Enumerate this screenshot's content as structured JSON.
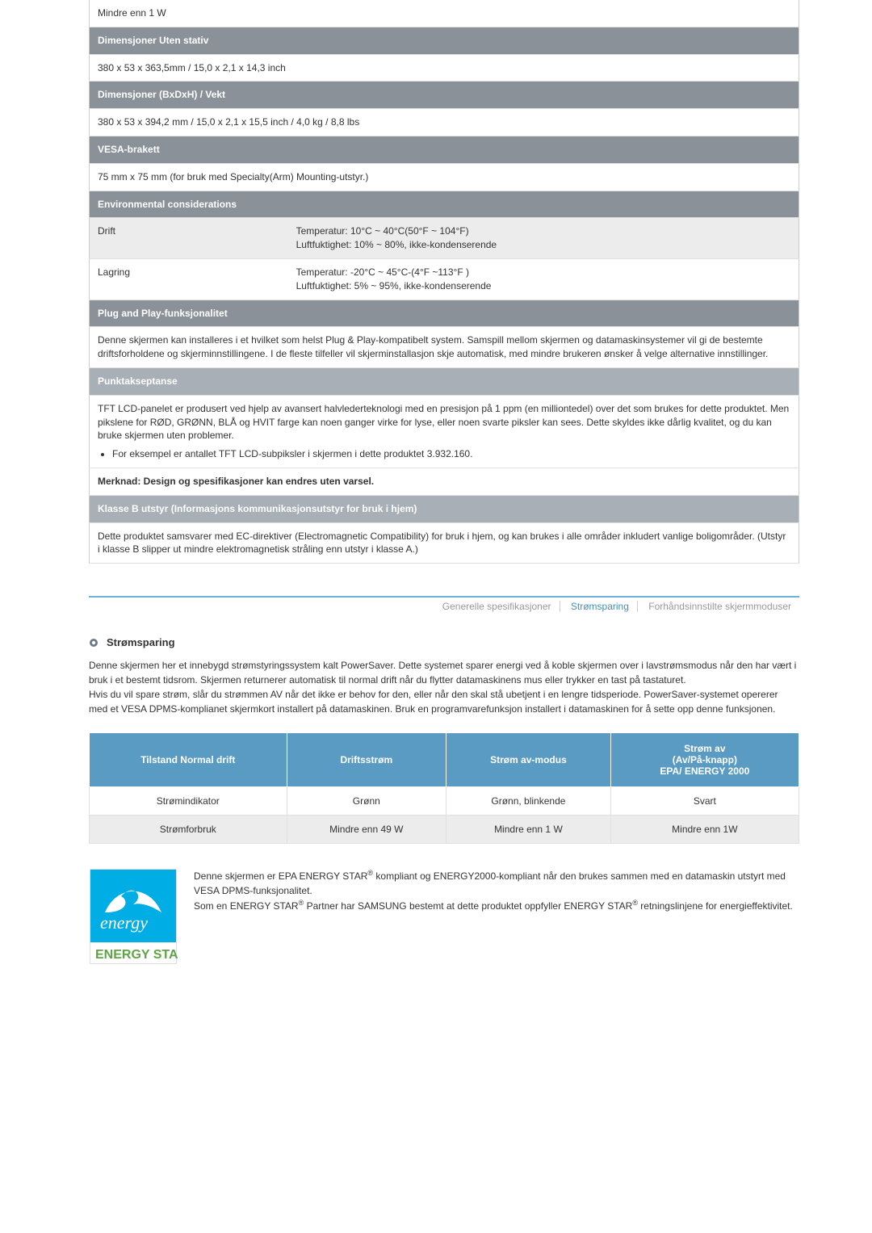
{
  "spec_rows": [
    {
      "type": "cell",
      "alt": false,
      "colspan": 2,
      "text": "Mindre enn 1 W"
    },
    {
      "type": "header",
      "text": "Dimensjoner Uten stativ"
    },
    {
      "type": "cell",
      "alt": false,
      "colspan": 2,
      "text": "380 x 53 x 363,5mm / 15,0 x 2,1 x 14,3 inch"
    },
    {
      "type": "header",
      "text": "Dimensjoner (BxDxH) / Vekt"
    },
    {
      "type": "cell",
      "alt": false,
      "colspan": 2,
      "text": "380 x 53 x 394,2 mm / 15,0 x 2,1 x 15,5 inch / 4,0 kg / 8,8 lbs"
    },
    {
      "type": "header",
      "text": "VESA-brakett"
    },
    {
      "type": "cell",
      "alt": false,
      "colspan": 2,
      "text": "75 mm x 75 mm (for bruk med Specialty(Arm) Mounting-utstyr.)"
    },
    {
      "type": "header",
      "text": "Environmental considerations"
    },
    {
      "type": "kv",
      "alt": true,
      "k": "Drift",
      "v": "Temperatur: 10°C ~ 40°C(50°F ~ 104°F)\nLuftfuktighet: 10% ~ 80%, ikke-kondenserende"
    },
    {
      "type": "kv",
      "alt": false,
      "k": "Lagring",
      "v": "Temperatur: -20°C ~ 45°C-(4°F ~113°F )\nLuftfuktighet: 5% ~ 95%, ikke-kondenserende"
    },
    {
      "type": "header",
      "text": "Plug and Play-funksjonalitet"
    },
    {
      "type": "cell",
      "alt": false,
      "colspan": 2,
      "text": "Denne skjermen kan installeres i et hvilket som helst Plug & Play-kompatibelt system. Samspill mellom skjermen og datamaskinsystemer vil gi de bestemte driftsforholdene og skjerminnstillingene. I de fleste tilfeller vil skjerminstallasjon skje automatisk, med mindre brukeren ønsker å velge alternative innstillinger."
    },
    {
      "type": "header-lt",
      "text": "Punktakseptanse"
    },
    {
      "type": "cell-list",
      "alt": false,
      "colspan": 2,
      "text": "TFT LCD-panelet er produsert ved hjelp av avansert halvlederteknologi med en presisjon på 1 ppm (en milliontedel) over det som brukes for dette produktet. Men pikslene for RØD, GRØNN, BLÅ og HVIT farge kan noen ganger virke for lyse, eller noen svarte piksler kan sees. Dette skyldes ikke dårlig kvalitet, og du kan bruke skjermen uten problemer.",
      "bullet": "For eksempel er antallet TFT LCD-subpiksler i skjermen i dette produktet 3.932.160."
    },
    {
      "type": "cell",
      "alt": false,
      "colspan": 2,
      "bold": true,
      "text": "Merknad: Design og spesifikasjoner kan endres uten varsel."
    },
    {
      "type": "header-lt",
      "text": "Klasse B utstyr (Informasjons kommunikasjonsutstyr for bruk i hjem)"
    },
    {
      "type": "cell",
      "alt": false,
      "colspan": 2,
      "text": "Dette produktet samsvarer med EC-direktiver (Electromagnetic Compatibility) for bruk i hjem, og kan brukes i alle områder inkludert vanlige boligområder. (Utstyr i klasse B slipper ut mindre elektromagnetisk stråling enn utstyr i klasse A.)"
    }
  ],
  "tabs": {
    "generelle": "Generelle spesifikasjoner",
    "strom": "Strømsparing",
    "forhand": "Forhåndsinnstilte skjermmoduser"
  },
  "power_section": {
    "title": "Strømsparing",
    "body": "Denne skjermen her et innebygd strømstyringssystem kalt PowerSaver. Dette systemet sparer energi ved å koble skjermen over i lavstrømsmodus når den har vært i bruk i et bestemt tidsrom. Skjermen returnerer automatisk til normal drift når du flytter datamaskinens mus eller trykker en tast på tastaturet.\nHvis du vil spare strøm, slår du strømmen AV når det ikke er behov for den, eller når den skal stå ubetjent i en lengre tidsperiode. PowerSaver-systemet opererer med et VESA DPMS-komplianet skjermkort installert på datamaskinen. Bruk en programvarefunksjon installert i datamaskinen for å sette opp denne funksjonen.",
    "headers": [
      "Tilstand Normal drift",
      "Driftsstrøm",
      "Strøm av-modus",
      "Strøm av\n(Av/På-knapp)\nEPA/ ENERGY 2000"
    ],
    "rows": [
      {
        "alt": false,
        "cells": [
          "Strømindikator",
          "Grønn",
          "Grønn, blinkende",
          "Svart"
        ]
      },
      {
        "alt": true,
        "cells": [
          "Strømforbruk",
          "Mindre enn 49 W",
          "Mindre enn 1 W",
          "Mindre enn 1W"
        ]
      }
    ]
  },
  "estar": {
    "line1a": "Denne skjermen er EPA ENERGY STAR",
    "line1b": " kompliant og ENERGY2000-kompliant når den brukes sammen med en datamaskin utstyrt med VESA DPMS-funksjonalitet.",
    "line2a": "Som en ENERGY STAR",
    "line2b": " Partner har SAMSUNG bestemt at dette produktet oppfyller ENERGY STAR",
    "line2c": " retningslinjene for energieffektivitet."
  },
  "colors": {
    "header_bg": "#8a9199",
    "header_lt_bg": "#a8afb6",
    "power_th_bg": "#5a9bc4",
    "alt_bg": "#ececec",
    "tab_active": "#4b8cb5",
    "estar_cyan": "#00aee5",
    "estar_green": "#5fa444"
  }
}
